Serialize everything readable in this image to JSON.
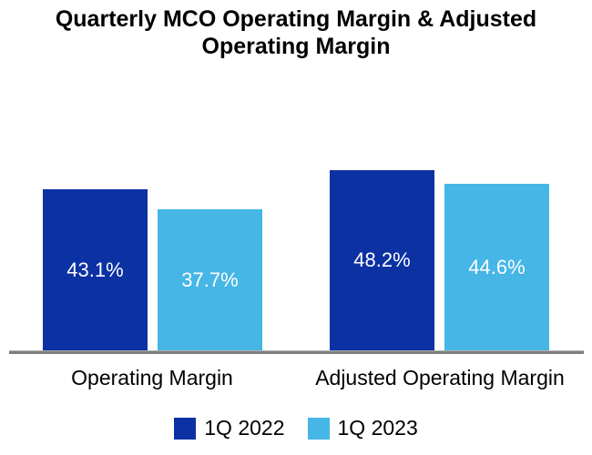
{
  "title": "Quarterly MCO Operating Margin & Adjusted Operating Margin",
  "chart_data": {
    "type": "bar",
    "title": "Quarterly MCO Operating Margin & Adjusted Operating Margin",
    "categories": [
      "Operating Margin",
      "Adjusted Operating Margin"
    ],
    "series": [
      {
        "name": "1Q 2022",
        "color": "#0B31A3",
        "values": [
          43.1,
          48.2
        ],
        "labels": [
          "43.1%",
          "48.2%"
        ]
      },
      {
        "name": "1Q 2023",
        "color": "#45B6E6",
        "values": [
          37.7,
          44.6
        ],
        "labels": [
          "37.7%",
          "44.6%"
        ]
      }
    ],
    "value_suffix": "%",
    "xlabel": "",
    "ylabel": "",
    "ylim": [
      0,
      50
    ],
    "grid": false,
    "y_axis_visible": false,
    "legend_position": "bottom",
    "data_labels": "inside-center",
    "data_label_color": "#FFFFFF",
    "baseline_color": "#7F7F7F",
    "background": "#FFFFFF"
  }
}
